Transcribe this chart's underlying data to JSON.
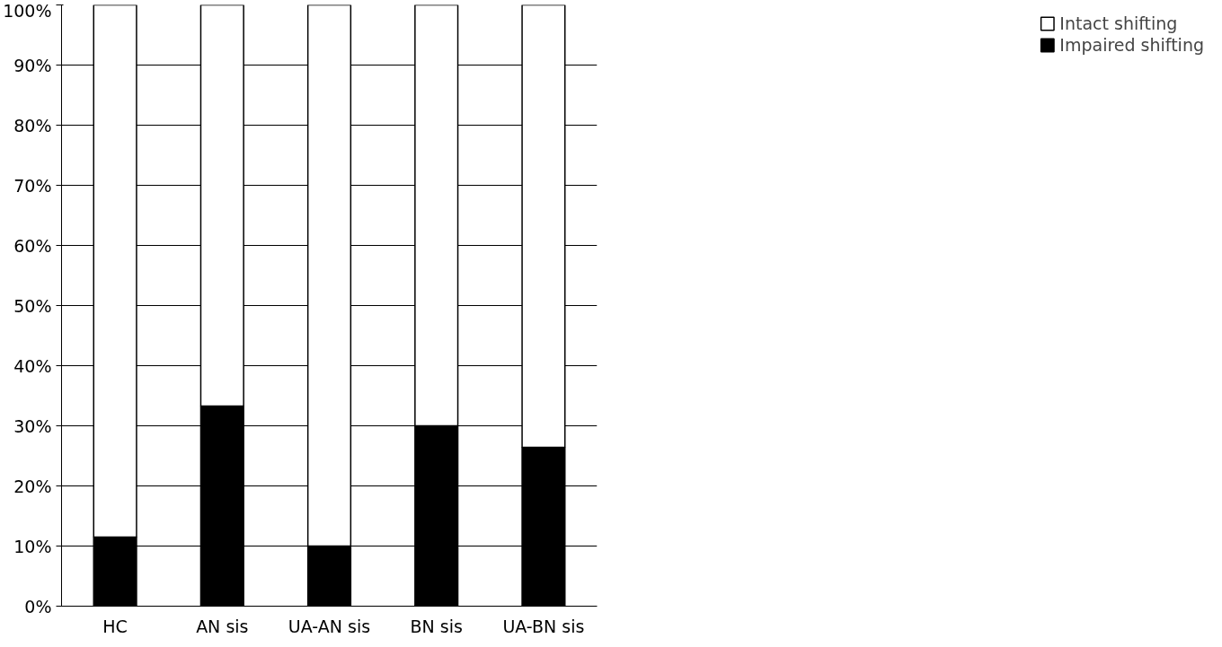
{
  "chart_data": {
    "type": "bar",
    "stacked": true,
    "categories": [
      "HC",
      "AN sis",
      "UA-AN sis",
      "BN sis",
      "UA-BN sis"
    ],
    "series": [
      {
        "name": "Impaired shifting",
        "color": "#000000",
        "values": [
          11.5,
          33.3,
          10,
          30,
          26.4
        ]
      },
      {
        "name": "Intact shifting",
        "color": "#ffffff",
        "values": [
          88.5,
          66.7,
          90,
          70,
          73.6
        ]
      }
    ],
    "ylim": [
      0,
      100
    ],
    "yticks": [
      {
        "value": 0,
        "label": "0%"
      },
      {
        "value": 10,
        "label": "10%"
      },
      {
        "value": 20,
        "label": "20%"
      },
      {
        "value": 30,
        "label": "30%"
      },
      {
        "value": 40,
        "label": "40%"
      },
      {
        "value": 50,
        "label": "50%"
      },
      {
        "value": 60,
        "label": "60%"
      },
      {
        "value": 70,
        "label": "70%"
      },
      {
        "value": 80,
        "label": "80%"
      },
      {
        "value": 90,
        "label": "90%"
      },
      {
        "value": 100,
        "label": "100%"
      }
    ],
    "grid": "y",
    "legend": "right"
  }
}
